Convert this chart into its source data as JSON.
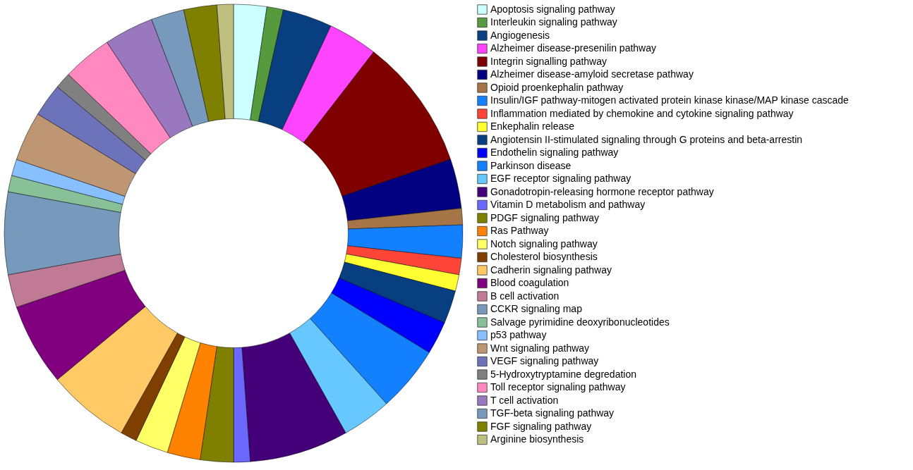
{
  "chart_data": {
    "type": "donut",
    "categories": [
      "Apoptosis signaling pathway",
      "Interleukin signaling pathway",
      "Angiogenesis",
      "Alzheimer disease-presenilin pathway",
      "Integrin signalling pathway",
      "Alzheimer disease-amyloid secretase pathway",
      "Opioid proenkephalin pathway",
      "Insulin/IGF pathway-mitogen activated protein kinase kinase/MAP kinase cascade",
      "Inflammation mediated by chemokine and cytokine signaling pathway",
      "Enkephalin release",
      "Angiotensin II-stimulated signaling through G proteins and beta-arrestin",
      "Endothelin signaling pathway",
      "Parkinson disease",
      "EGF receptor signaling pathway",
      "Gonadotropin-releasing hormone receptor pathway",
      "Vitamin D metabolism and pathway",
      "PDGF signaling pathway",
      "Ras Pathway",
      "Notch signaling pathway",
      "Cholesterol biosynthesis",
      "Cadherin signaling pathway",
      "Blood coagulation",
      "B cell activation",
      "CCKR signaling map",
      "Salvage pyrimidine deoxyribonucleotides",
      "p53 pathway",
      "Wnt signaling pathway",
      "VEGF signaling pathway",
      "5-Hydroxytryptamine degredation",
      "Toll receptor signaling pathway",
      "T cell activation",
      "TGF-beta signaling pathway",
      "FGF signaling pathway",
      "Arginine biosynthesis"
    ],
    "values": [
      2.33,
      1.16,
      3.49,
      3.49,
      9.3,
      3.49,
      1.16,
      2.33,
      1.16,
      1.16,
      2.33,
      2.33,
      4.65,
      3.49,
      6.98,
      1.16,
      2.33,
      2.33,
      2.33,
      1.16,
      5.81,
      5.81,
      2.33,
      5.81,
      1.16,
      1.16,
      3.49,
      2.33,
      1.16,
      3.49,
      3.49,
      2.33,
      2.33,
      1.16
    ],
    "colors": [
      "#ccffff",
      "#559a3d",
      "#083f80",
      "#ff44ff",
      "#800000",
      "#000080",
      "#a57548",
      "#1380ff",
      "#ff4438",
      "#ffff33",
      "#083f80",
      "#0000ff",
      "#1380ff",
      "#66c8ff",
      "#440078",
      "#6a68ff",
      "#808000",
      "#ff8200",
      "#ffff66",
      "#7f3f00",
      "#ffc966",
      "#800080",
      "#c07a96",
      "#7799bb",
      "#88c098",
      "#88bfff",
      "#bf9673",
      "#6d73bb",
      "#808080",
      "#ff88c0",
      "#9a78bf",
      "#7799bb",
      "#808000",
      "#bfbf80"
    ],
    "legend": "right"
  }
}
